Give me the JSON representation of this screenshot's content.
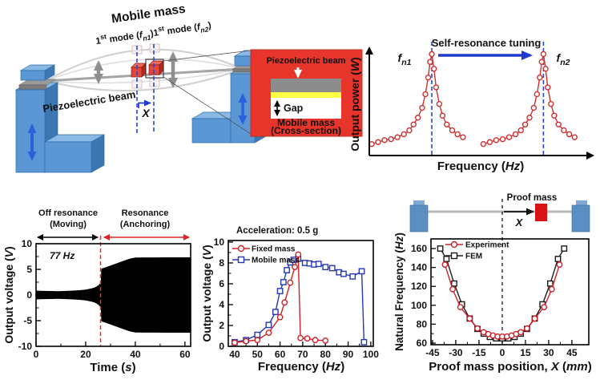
{
  "colors": {
    "series_red": "#cf2027",
    "series_blue": "#2438b4",
    "fem_black": "#1a1a1a",
    "dashed_blue": "#2a46cc",
    "annotation_blue": "#1f3bd0",
    "accent_red": "#e02222",
    "green_title": "#149414",
    "steel_blue": "#5b97d5",
    "steel_light": "#8ab9e4",
    "steel_dark": "#3c77b2",
    "inset_red": "#e8352b",
    "gray_beam": "#a5a5a5",
    "yellow_layer": "#ffff45"
  },
  "labels": {
    "diagram_title": "Mobile mass",
    "diagram_mode_rich": [
      {
        "t": "1"
      },
      {
        "t": "st",
        "s": "sup"
      },
      {
        "t": " mode ("
      },
      {
        "t": "f",
        "s": "i"
      },
      {
        "t": "n1",
        "s": "isub"
      },
      {
        "t": ")"
      },
      {
        "t": "1"
      },
      {
        "t": "st",
        "s": "sup"
      },
      {
        "t": " mode ("
      },
      {
        "t": "f",
        "s": "i"
      },
      {
        "t": "n2",
        "s": "isub"
      },
      {
        "t": ")"
      }
    ],
    "diagram_beam": "Piezoelectric beam",
    "diagram_x": "X",
    "inset_title": "Piezoelectric beam",
    "inset_gap": "Gap",
    "inset_mass1": "Mobile mass",
    "inset_mass2": "(Cross-section)",
    "fn1_rich": [
      {
        "t": "f",
        "s": "i"
      },
      {
        "t": "n1",
        "s": "isub"
      }
    ],
    "fn2_rich": [
      {
        "t": "f",
        "s": "i"
      },
      {
        "t": "n2",
        "s": "isub"
      }
    ],
    "sch_ylabel_rich": [
      {
        "t": "Output power ("
      },
      {
        "t": "W",
        "s": "i"
      },
      {
        "t": ")"
      }
    ],
    "sch_xlabel_rich": [
      {
        "t": "Frequency ("
      },
      {
        "t": "Hz",
        "s": "i"
      },
      {
        "t": ")"
      }
    ],
    "time_xlabel_rich": [
      {
        "t": "Time ("
      },
      {
        "t": "s",
        "s": "i"
      },
      {
        "t": ")"
      }
    ],
    "time_ylabel_rich": [
      {
        "t": "Output voltage ("
      },
      {
        "t": "V",
        "s": "i"
      },
      {
        "t": ")"
      }
    ],
    "freq_xlabel_rich": [
      {
        "t": "Frequency ("
      },
      {
        "t": "Hz",
        "s": "i"
      },
      {
        "t": ")"
      }
    ],
    "freq_ylabel_rich": [
      {
        "t": "Output voltage ("
      },
      {
        "t": "V",
        "s": "i"
      },
      {
        "t": ")"
      }
    ],
    "pos_xlabel_rich": [
      {
        "t": "Proof mass position, "
      },
      {
        "t": "X",
        "s": "i"
      },
      {
        "t": " ("
      },
      {
        "t": "mm",
        "s": "i"
      },
      {
        "t": ")"
      }
    ],
    "pos_ylabel_rich": [
      {
        "t": "Natural Frequency ("
      },
      {
        "t": "Hz",
        "s": "i"
      },
      {
        "t": ")"
      }
    ],
    "pos_proof_mass": "Proof mass",
    "pos_x": "X"
  },
  "chart_data": [
    {
      "id": "power_vs_frequency_schematic",
      "type": "line",
      "xlabel": "Frequency (Hz)",
      "ylabel": "Output power (W)",
      "annotation": "Self-resonance tuning",
      "peak_labels": [
        "fn1",
        "fn2"
      ],
      "note": "qualitative schematic, relative units 0-100",
      "peak_x": [
        28,
        80
      ],
      "series": [
        {
          "name": "resonance peak at fn1",
          "x": [
            0,
            3,
            6,
            9,
            12,
            15,
            17.5,
            19.5,
            21.5,
            23.5,
            25,
            26.3,
            27.2,
            28,
            29,
            30,
            31.5,
            33,
            35,
            37.5,
            40,
            42.5
          ],
          "y": [
            6,
            8,
            10,
            11,
            13,
            16,
            20,
            26,
            33,
            43,
            57,
            74,
            90,
            98,
            83,
            64,
            47,
            35,
            26,
            20,
            16,
            13
          ]
        },
        {
          "name": "resonance peak at fn2",
          "x": [
            52,
            55,
            58,
            61,
            64,
            67,
            69.5,
            71.5,
            73.5,
            75.5,
            77,
            78.3,
            79.2,
            80,
            81,
            82,
            83.5,
            85,
            87,
            89.5,
            92,
            94.5
          ],
          "y": [
            6,
            8,
            10,
            11,
            13,
            16,
            20,
            26,
            33,
            43,
            57,
            74,
            90,
            98,
            83,
            64,
            47,
            35,
            26,
            20,
            16,
            13
          ]
        }
      ]
    },
    {
      "id": "output_voltage_vs_time",
      "type": "line",
      "xlabel": "Time (s)",
      "ylabel": "Output voltage (V)",
      "xlim": [
        0,
        62.3
      ],
      "ylim": [
        -10,
        10
      ],
      "xticks": [
        0,
        20,
        40,
        60
      ],
      "xticks_minor": [
        10,
        30,
        50
      ],
      "yticks": [
        -10,
        -5,
        0,
        5,
        10
      ],
      "yticks_minor": [
        -7.5,
        -2.5,
        2.5,
        7.5
      ],
      "annotation": "77 Hz",
      "transition_time_s": 26,
      "regions": [
        {
          "label": "Off resonance",
          "sublabel": "(Moving)",
          "from": 0,
          "to": 26
        },
        {
          "label": "Resonance",
          "sublabel": "(Anchoring)",
          "from": 26,
          "to": 60
        }
      ],
      "envelope_t": [
        0,
        3,
        6,
        9,
        12,
        15,
        18,
        20,
        22,
        23.5,
        24.5,
        25.3,
        25.8,
        26.1,
        26.3,
        27,
        28,
        30,
        32,
        34,
        36,
        38,
        40,
        44,
        48,
        52,
        56,
        60,
        62.3
      ],
      "envelope_v": [
        0.85,
        0.8,
        0.78,
        0.75,
        0.8,
        0.85,
        0.95,
        1.05,
        1.25,
        1.45,
        1.7,
        2.0,
        2.3,
        2.5,
        5.1,
        5.25,
        5.4,
        5.75,
        6.1,
        6.45,
        6.8,
        7.1,
        7.3,
        7.32,
        7.33,
        7.35,
        7.35,
        7.35,
        7.35
      ]
    },
    {
      "id": "output_voltage_vs_frequency",
      "type": "line",
      "title": "Acceleration: 0.5 g",
      "xlabel": "Frequency (Hz)",
      "ylabel": "Output voltage (V)",
      "xlim": [
        37.2,
        101.1
      ],
      "ylim": [
        0,
        10.15
      ],
      "xticks": [
        40,
        50,
        60,
        70,
        80,
        90,
        100
      ],
      "xticks_minor": [
        45,
        55,
        65,
        75,
        85,
        95
      ],
      "yticks": [
        0,
        2,
        4,
        6,
        8,
        10
      ],
      "yticks_minor": [
        1,
        3,
        5,
        7,
        9
      ],
      "legend_position": "top-left",
      "series": [
        {
          "name": "Fixed mass",
          "color": "#cf2027",
          "marker": "circle",
          "x": [
            40,
            45,
            50,
            55,
            60,
            62,
            64.5,
            66.5,
            68,
            69,
            72,
            75.5,
            80
          ],
          "y": [
            0.35,
            0.5,
            0.6,
            1.3,
            2.8,
            4.2,
            6.1,
            7.6,
            8.8,
            0.8,
            0.75,
            0.6,
            0.55
          ]
        },
        {
          "name": "Mobile mass",
          "color": "#2438b4",
          "marker": "square",
          "x": [
            40,
            45,
            50,
            55,
            58,
            60,
            61.5,
            63,
            64.5,
            66,
            68,
            71,
            73,
            75,
            77,
            80,
            83,
            86,
            88,
            92,
            96,
            97
          ],
          "y": [
            0.4,
            0.6,
            1.1,
            2.05,
            3.3,
            5.3,
            6.15,
            7.3,
            8.05,
            8.3,
            8.4,
            8.0,
            7.95,
            7.85,
            7.9,
            7.6,
            7.5,
            7.1,
            6.95,
            6.7,
            7.2,
            0.4
          ]
        }
      ]
    },
    {
      "id": "natural_frequency_vs_position",
      "type": "line",
      "xlabel": "Proof mass position, X (mm)",
      "ylabel": "Natural Frequency (Hz)",
      "xlim": [
        -46,
        55.9
      ],
      "ylim": [
        58.3,
        170.2
      ],
      "xticks": [
        -45,
        -30,
        -15,
        0,
        15,
        30,
        45
      ],
      "xticks_minor": [
        -37.5,
        -22.5,
        -7.5,
        7.5,
        22.5,
        37.5
      ],
      "yticks": [
        60,
        80,
        100,
        120,
        140,
        160
      ],
      "yticks_minor": [
        70,
        90,
        110,
        130,
        150
      ],
      "legend_position": "top-left",
      "series": [
        {
          "name": "Experiment",
          "color": "#cf2027",
          "marker": "circle",
          "x": [
            -37,
            -32,
            -27,
            -21,
            -16,
            -12,
            -9,
            -6,
            -3,
            0,
            3,
            6,
            9,
            12,
            16,
            21,
            27,
            32,
            37
          ],
          "y": [
            143,
            117,
            98,
            86,
            75.5,
            71.5,
            69.5,
            68,
            67,
            67,
            67,
            68,
            69.5,
            71.5,
            75.5,
            86,
            98,
            117,
            143
          ]
        },
        {
          "name": "FEM",
          "color": "#1a1a1a",
          "marker": "square",
          "x": [
            -40,
            -36,
            -31,
            -26,
            -21,
            -16,
            -12,
            -8,
            -4,
            0,
            4,
            8,
            12,
            16,
            21,
            26,
            31,
            36,
            40
          ],
          "y": [
            160,
            149,
            123,
            101,
            86,
            75,
            70,
            66.5,
            65,
            65,
            65,
            66.5,
            70,
            75,
            86,
            101,
            123,
            149,
            160
          ]
        }
      ]
    }
  ]
}
